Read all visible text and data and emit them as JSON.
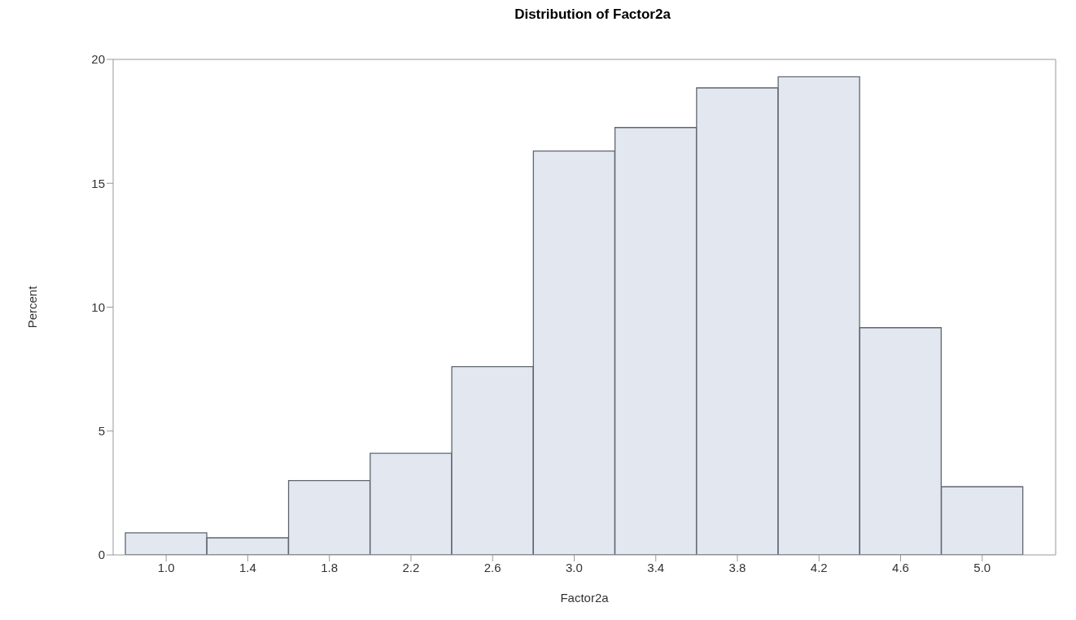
{
  "chart_data": {
    "type": "histogram",
    "title": "Distribution of Factor2a",
    "xlabel": "Factor2a",
    "ylabel": "Percent",
    "bins": [
      0.8,
      1.2,
      1.6,
      2.0,
      2.4,
      2.8,
      3.2,
      3.6,
      4.0,
      4.4,
      4.8,
      5.2
    ],
    "values": [
      0.89,
      0.69,
      3.0,
      4.1,
      7.6,
      16.3,
      17.25,
      18.85,
      19.3,
      9.17,
      2.75
    ],
    "color": "#e3e7f0",
    "xlim": [
      0.74,
      5.36
    ],
    "xticks": [
      {
        "value": 1.0,
        "label": "1.0"
      },
      {
        "value": 1.4,
        "label": "1.4"
      },
      {
        "value": 1.8,
        "label": "1.8"
      },
      {
        "value": 2.2,
        "label": "2.2"
      },
      {
        "value": 2.6,
        "label": "2.6"
      },
      {
        "value": 3.0,
        "label": "3.0"
      },
      {
        "value": 3.4,
        "label": "3.4"
      },
      {
        "value": 3.8,
        "label": "3.8"
      },
      {
        "value": 4.2,
        "label": "4.2"
      },
      {
        "value": 4.6,
        "label": "4.6"
      },
      {
        "value": 5.0,
        "label": "5.0"
      }
    ],
    "ylim": [
      0,
      20
    ],
    "yticks": [
      0,
      5,
      10,
      15,
      20
    ],
    "grid": false
  }
}
